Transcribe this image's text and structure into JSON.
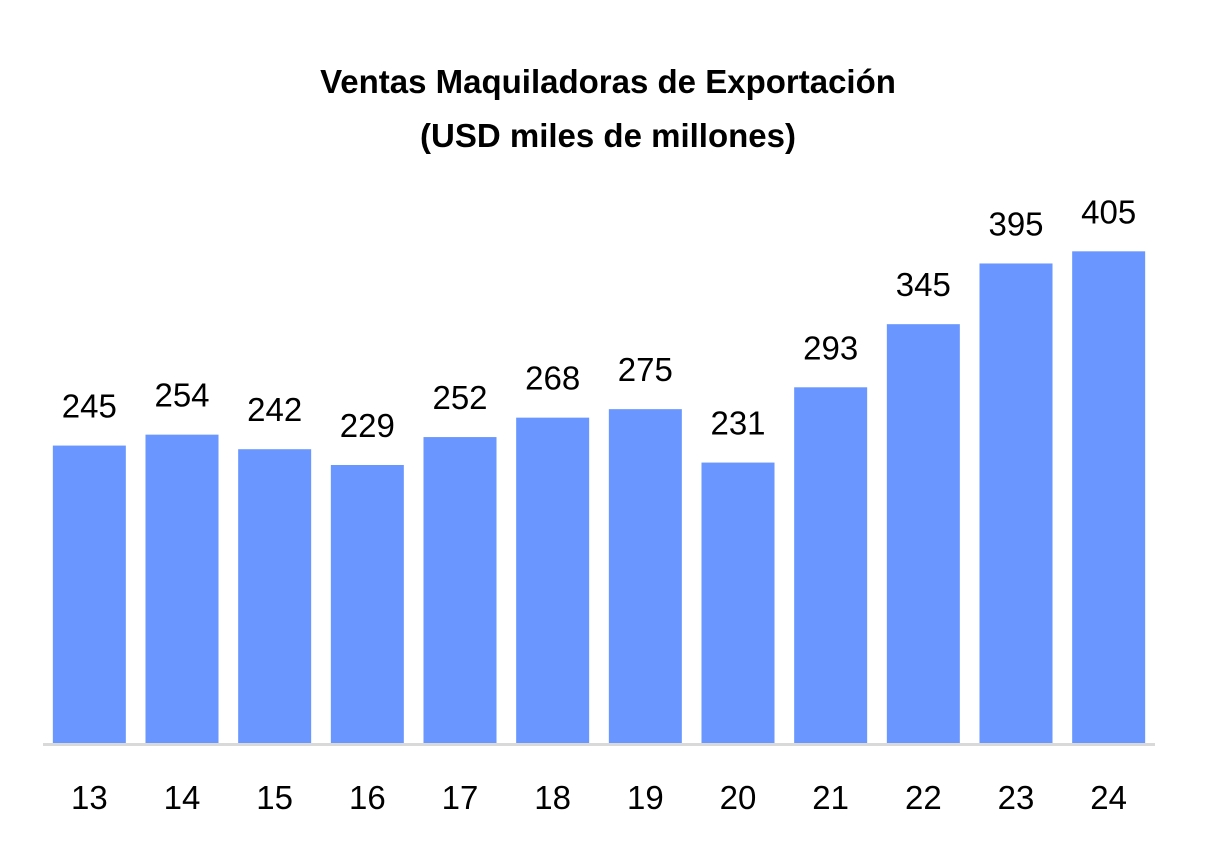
{
  "chart_data": {
    "type": "bar",
    "title": "Ventas Maquiladoras de Exportación",
    "subtitle": "(USD miles de millones)",
    "categories": [
      "13",
      "14",
      "15",
      "16",
      "17",
      "18",
      "19",
      "20",
      "21",
      "22",
      "23",
      "24"
    ],
    "values": [
      245,
      254,
      242,
      229,
      252,
      268,
      275,
      231,
      293,
      345,
      395,
      405
    ],
    "xlabel": "",
    "ylabel": "",
    "ylim": [
      0,
      450
    ],
    "grid": false,
    "legend": "none",
    "bar_color": "#6A96FF",
    "axis_color": "#D9D9D9"
  }
}
